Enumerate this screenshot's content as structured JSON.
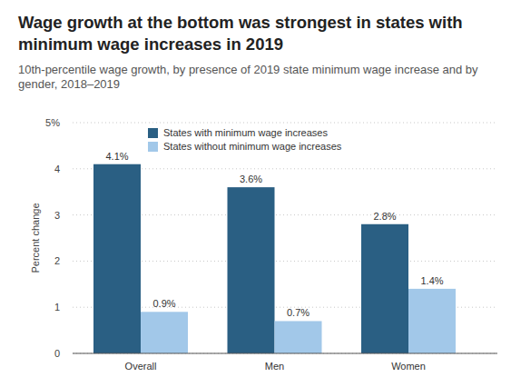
{
  "chart_data": {
    "type": "bar",
    "title": "Wage growth at the bottom was strongest in states with minimum wage increases in 2019",
    "subtitle": "10th-percentile wage growth, by presence of 2019 state minimum wage increase and by gender, 2018–2019",
    "y_label": "Percent change",
    "categories": [
      "Overall",
      "Men",
      "Women"
    ],
    "series": [
      {
        "name": "States with minimum wage increases",
        "color": "#2a5f83",
        "values": [
          4.1,
          3.6,
          2.8
        ],
        "value_labels": [
          "4.1%",
          "3.6%",
          "2.8%"
        ]
      },
      {
        "name": "States without minimum wage increases",
        "color": "#a2c8e9",
        "values": [
          0.9,
          0.7,
          1.4
        ],
        "value_labels": [
          "0.9%",
          "0.7%",
          "1.4%"
        ]
      }
    ],
    "ylim": [
      0,
      5
    ],
    "yticks": [
      0,
      1,
      2,
      3,
      4,
      {
        "value": 5,
        "label": "5%"
      }
    ],
    "grid": true,
    "legend": "top-left",
    "data_labels": true
  }
}
